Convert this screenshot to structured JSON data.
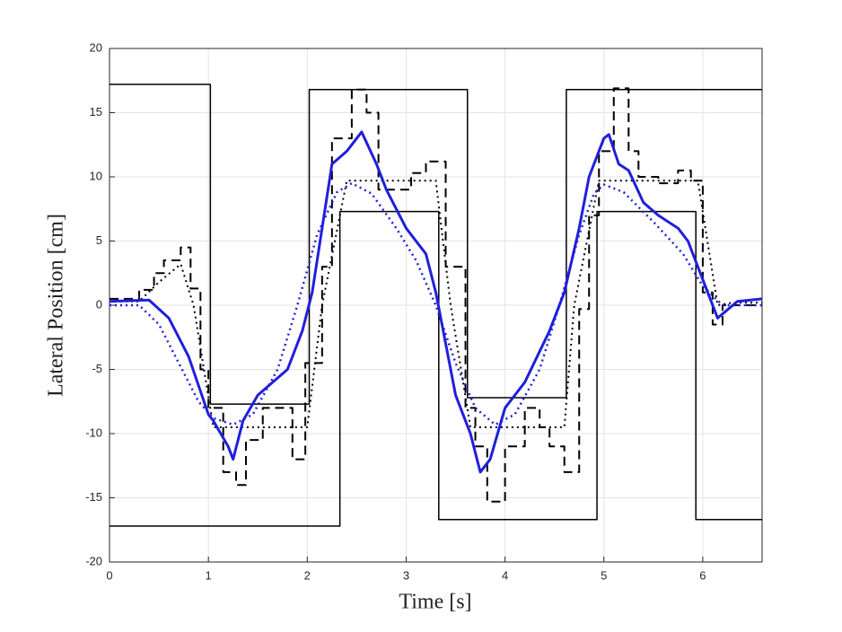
{
  "chart_data": {
    "type": "line",
    "x_label": "Time [s]",
    "y_label": "Lateral Position [cm]",
    "xlim": [
      0,
      6.6
    ],
    "ylim": [
      -20,
      20
    ],
    "xticks": [
      0,
      1,
      2,
      3,
      4,
      5,
      6
    ],
    "yticks": [
      -20,
      -15,
      -10,
      -5,
      0,
      5,
      10,
      15,
      20
    ],
    "grid": true,
    "series": [
      {
        "color": "#000000",
        "style": "solid",
        "width": 1.5,
        "x": [
          0,
          1.02,
          1.02,
          2.02,
          2.02,
          3.62,
          3.62,
          4.62,
          4.62,
          6.6
        ],
        "values": [
          17.2,
          17.2,
          -7.7,
          -7.7,
          16.8,
          16.8,
          -7.2,
          -7.2,
          16.8,
          16.8
        ]
      },
      {
        "color": "#000000",
        "style": "solid",
        "width": 1.5,
        "x": [
          0,
          2.33,
          2.33,
          3.33,
          3.33,
          4.93,
          4.93,
          5.93,
          5.93,
          6.6
        ],
        "values": [
          -17.2,
          -17.2,
          7.3,
          7.3,
          -16.7,
          -16.7,
          7.3,
          7.3,
          -16.7,
          -16.7
        ]
      },
      {
        "color": "#000000",
        "style": "dashed",
        "width": 2,
        "x": [
          0,
          0.3,
          0.3,
          0.45,
          0.45,
          0.55,
          0.55,
          0.72,
          0.72,
          0.82,
          0.82,
          0.92,
          0.92,
          1.0,
          1.0,
          1.15,
          1.15,
          1.28,
          1.28,
          1.38,
          1.38,
          1.55,
          1.55,
          1.85,
          1.85,
          1.98,
          1.98,
          2.15,
          2.15,
          2.25,
          2.25,
          2.45,
          2.45,
          2.6,
          2.6,
          2.72,
          2.72,
          3.05,
          3.05,
          3.2,
          3.2,
          3.4,
          3.4,
          3.6,
          3.6,
          3.7,
          3.7,
          3.82,
          3.82,
          4.0,
          4.0,
          4.2,
          4.2,
          4.35,
          4.35,
          4.45,
          4.45,
          4.6,
          4.6,
          4.75,
          4.75,
          4.85,
          4.85,
          4.95,
          4.95,
          5.1,
          5.1,
          5.25,
          5.25,
          5.35,
          5.35,
          5.55,
          5.55,
          5.75,
          5.75,
          5.88,
          5.88,
          6.0,
          6.0,
          6.1,
          6.1,
          6.2,
          6.2,
          6.6
        ],
        "values": [
          0.5,
          0.5,
          1.2,
          1.2,
          2.5,
          2.5,
          3.5,
          3.5,
          4.5,
          4.5,
          1.3,
          1.3,
          -5,
          -5,
          -8,
          -8,
          -13,
          -13,
          -14,
          -14,
          -10.5,
          -10.5,
          -8,
          -8,
          -12,
          -12,
          -4.5,
          -4.5,
          3,
          3,
          13,
          13,
          16.8,
          16.8,
          15,
          15,
          9,
          9,
          10.3,
          10.3,
          11.2,
          11.2,
          3,
          3,
          -8,
          -8,
          -11,
          -11,
          -15.3,
          -15.3,
          -11,
          -11,
          -8,
          -8,
          -9.5,
          -9.5,
          -11,
          -11,
          -13,
          -13,
          -0.3,
          -0.3,
          7,
          7,
          12,
          12,
          16.9,
          16.9,
          12,
          12,
          10,
          10,
          9.5,
          9.5,
          10.5,
          10.5,
          9.7,
          9.7,
          1,
          1,
          -1.5,
          -1.5,
          0,
          0
        ]
      },
      {
        "color": "#000000",
        "style": "dotted",
        "width": 2,
        "x": [
          0,
          0.3,
          0.5,
          0.72,
          0.85,
          1.05,
          2.0,
          2.15,
          2.4,
          3.3,
          3.45,
          3.65,
          4.6,
          4.7,
          4.95,
          5.95,
          6.15,
          6.3,
          6.6
        ],
        "values": [
          0.3,
          0.3,
          1.8,
          3.2,
          0,
          -9.5,
          -9.5,
          0,
          9.7,
          9.7,
          0,
          -9.5,
          -9.5,
          0,
          9.7,
          9.7,
          0,
          0.2,
          0.2
        ]
      },
      {
        "color": "#1f1fdc",
        "style": "solid",
        "width": 3,
        "x": [
          0,
          0.4,
          0.6,
          0.8,
          1.0,
          1.05,
          1.2,
          1.25,
          1.35,
          1.5,
          1.8,
          1.95,
          2.05,
          2.15,
          2.25,
          2.4,
          2.55,
          2.7,
          2.8,
          3.0,
          3.2,
          3.3,
          3.4,
          3.5,
          3.65,
          3.75,
          3.85,
          4.0,
          4.2,
          4.45,
          4.6,
          4.75,
          4.85,
          5.0,
          5.05,
          5.15,
          5.25,
          5.4,
          5.55,
          5.75,
          5.85,
          6.0,
          6.15,
          6.35,
          6.6
        ],
        "values": [
          0.3,
          0.4,
          -1,
          -4,
          -8.5,
          -9,
          -11,
          -12,
          -9,
          -7,
          -5,
          -2,
          1,
          6,
          11,
          12,
          13.5,
          11,
          9,
          6,
          4,
          1,
          -3,
          -7,
          -10,
          -13,
          -12,
          -8,
          -6,
          -2,
          1,
          6,
          10,
          13,
          13.3,
          11,
          10.5,
          8,
          7,
          6,
          5,
          2,
          -1,
          0.3,
          0.5
        ]
      },
      {
        "color": "#1f1fdc",
        "style": "dotted",
        "width": 2.5,
        "x": [
          0,
          0.3,
          0.5,
          0.7,
          0.9,
          1.05,
          1.25,
          1.45,
          1.7,
          1.9,
          2.1,
          2.3,
          2.45,
          2.65,
          2.9,
          3.1,
          3.3,
          3.5,
          3.7,
          3.9,
          4.1,
          4.35,
          4.55,
          4.75,
          4.9,
          5.0,
          5.2,
          5.5,
          5.8,
          6.0,
          6.2,
          6.4,
          6.6
        ],
        "values": [
          0,
          0,
          -1.5,
          -4.5,
          -7.5,
          -8.8,
          -9.3,
          -8.5,
          -5,
          0,
          5.5,
          8.8,
          9.5,
          8.7,
          6,
          3.5,
          0,
          -4.5,
          -8,
          -9.3,
          -8.5,
          -5,
          0,
          5.5,
          8.7,
          9.4,
          8.8,
          6.5,
          4,
          1.5,
          0,
          0,
          0
        ]
      }
    ]
  }
}
